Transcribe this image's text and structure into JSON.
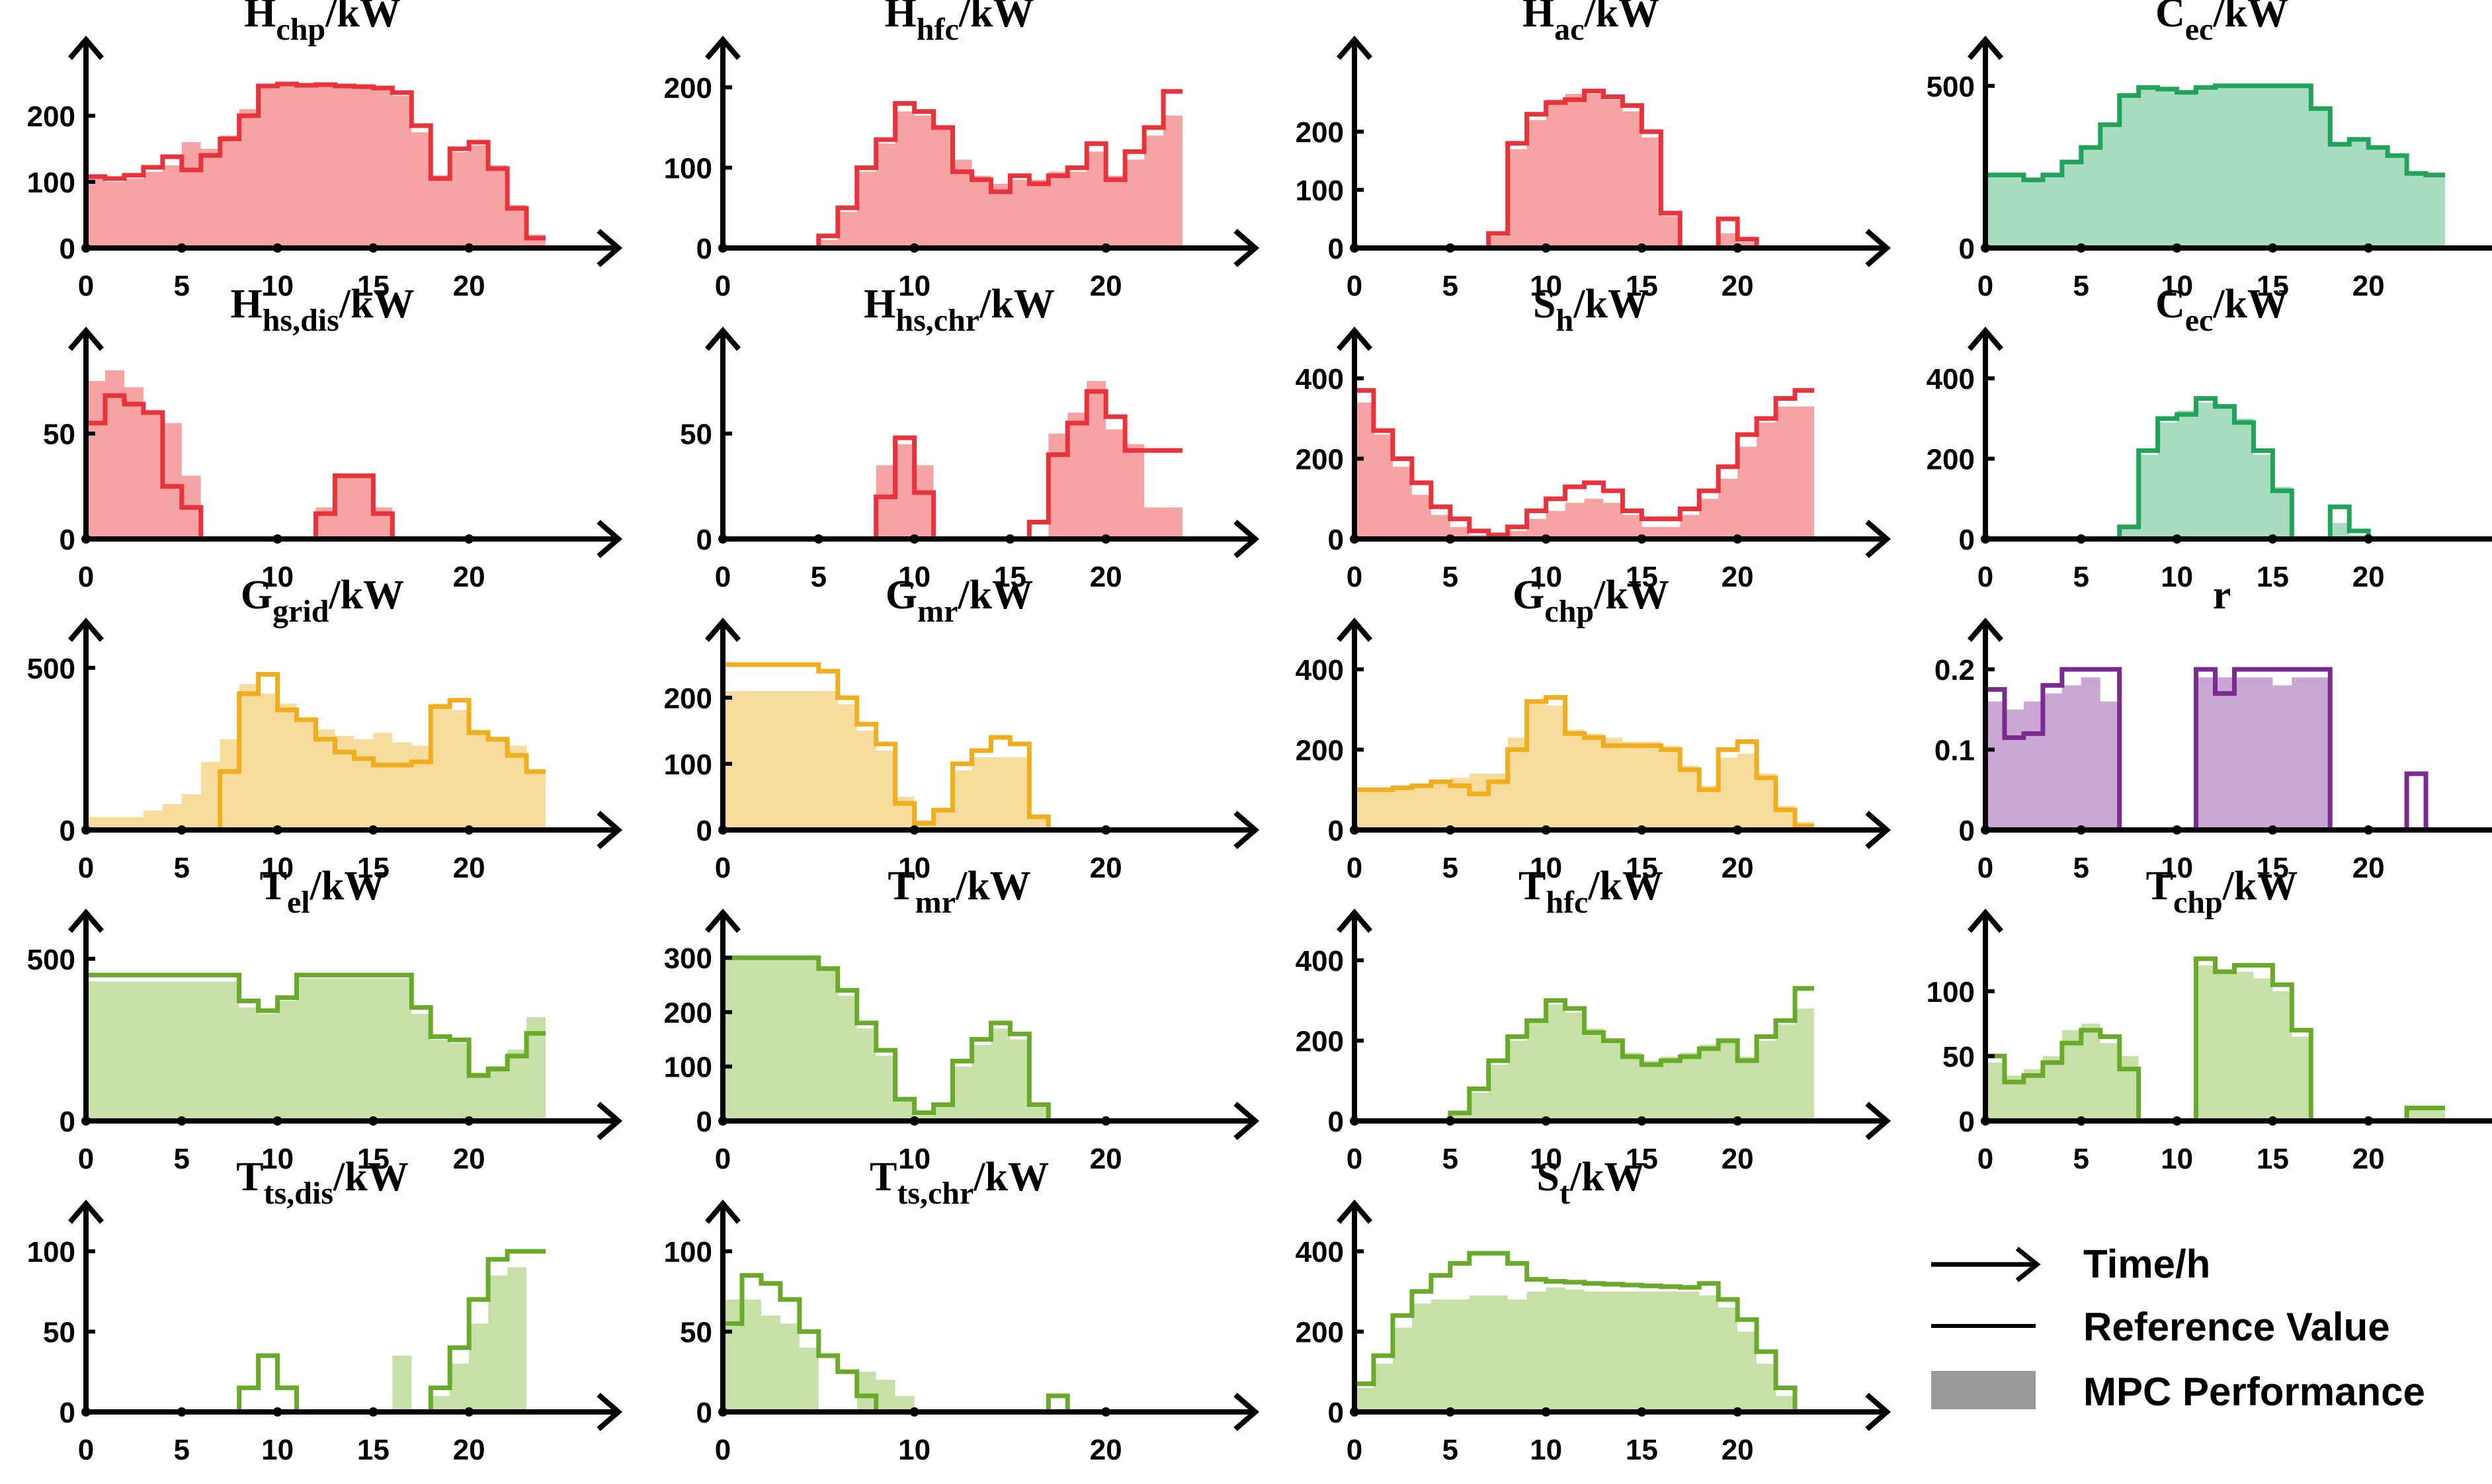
{
  "colors": {
    "red": {
      "line": "#e8333c",
      "fill": "#f5a3a3"
    },
    "green": {
      "line": "#22a35a",
      "fill": "#a8dcc0"
    },
    "yellow": {
      "line": "#f0ad1e",
      "fill": "#f8dc9e"
    },
    "purple": {
      "line": "#7b2a90",
      "fill": "#c9a6d3"
    },
    "olive": {
      "line": "#6aaa2a",
      "fill": "#c7e0a8"
    },
    "axis": "#000000",
    "legend_patch": "#999999"
  },
  "legend": {
    "time_label": "Time/h",
    "ref_label": "Reference Value",
    "mpc_label": "MPC Performance"
  },
  "chart_data": [
    {
      "id": "H_chp",
      "type": "step-area",
      "title_main": "H",
      "title_sub": "chp",
      "title_unit": "/kW",
      "color": "red",
      "xticks": [
        0,
        5,
        10,
        15,
        20
      ],
      "yticks": [
        0,
        100,
        200
      ],
      "ymax": 255,
      "reference": [
        108,
        105,
        110,
        122,
        138,
        118,
        140,
        165,
        200,
        245,
        248,
        246,
        247,
        245,
        244,
        242,
        235,
        185,
        105,
        150,
        160,
        120,
        60,
        15
      ],
      "mpc": [
        110,
        100,
        105,
        115,
        125,
        160,
        150,
        170,
        210,
        245,
        248,
        245,
        245,
        244,
        245,
        240,
        230,
        175,
        110,
        145,
        155,
        125,
        65,
        20
      ]
    },
    {
      "id": "H_hfc",
      "type": "step-area",
      "title_main": "H",
      "title_sub": "hfc",
      "title_unit": "/kW",
      "color": "red",
      "xticks": [
        0,
        10,
        20
      ],
      "yticks": [
        0,
        100,
        200
      ],
      "ymax": 210,
      "reference": [
        0,
        0,
        0,
        0,
        0,
        15,
        50,
        100,
        135,
        180,
        170,
        150,
        95,
        85,
        70,
        90,
        80,
        90,
        100,
        130,
        85,
        120,
        150,
        195
      ],
      "mpc": [
        0,
        0,
        0,
        0,
        0,
        10,
        45,
        95,
        130,
        170,
        165,
        150,
        110,
        90,
        80,
        85,
        85,
        95,
        95,
        120,
        90,
        110,
        140,
        165
      ]
    },
    {
      "id": "H_ac",
      "type": "step-area",
      "title_main": "H",
      "title_sub": "ac",
      "title_unit": "/kW",
      "color": "red",
      "xticks": [
        0,
        5,
        10,
        15,
        20
      ],
      "yticks": [
        0,
        100,
        200
      ],
      "ymax": 290,
      "reference": [
        0,
        0,
        0,
        0,
        0,
        0,
        0,
        25,
        180,
        230,
        250,
        255,
        270,
        260,
        245,
        200,
        60,
        0,
        0,
        50,
        15,
        0,
        0,
        0
      ],
      "mpc": [
        0,
        0,
        0,
        0,
        0,
        0,
        0,
        20,
        170,
        220,
        255,
        265,
        265,
        255,
        235,
        190,
        55,
        0,
        0,
        25,
        10,
        0,
        0,
        0
      ]
    },
    {
      "id": "C_ec",
      "type": "step-area",
      "title_main": "C",
      "title_sub": "ec",
      "title_unit": "/kW",
      "color": "green",
      "xticks": [
        0,
        5,
        10,
        15,
        20
      ],
      "yticks": [
        0,
        500
      ],
      "ymax": 520,
      "reference": [
        225,
        225,
        210,
        225,
        265,
        310,
        380,
        470,
        495,
        490,
        480,
        495,
        500,
        500,
        500,
        500,
        500,
        430,
        320,
        335,
        310,
        285,
        230,
        225
      ],
      "mpc": [
        225,
        225,
        210,
        230,
        270,
        315,
        385,
        470,
        490,
        490,
        485,
        495,
        500,
        500,
        500,
        500,
        500,
        430,
        325,
        330,
        310,
        280,
        230,
        220
      ]
    },
    {
      "id": "H_hs_dis",
      "type": "step-area",
      "title_main": "H",
      "title_sub": "hs,dis",
      "title_unit": "/kW",
      "color": "red",
      "xticks": [
        0,
        10,
        20
      ],
      "yticks": [
        0,
        50
      ],
      "ymax": 80,
      "reference": [
        55,
        68,
        64,
        60,
        25,
        15,
        0,
        0,
        0,
        0,
        0,
        0,
        12,
        30,
        30,
        12,
        0,
        0,
        0,
        0,
        0,
        0,
        0,
        0
      ],
      "mpc": [
        75,
        80,
        72,
        60,
        55,
        30,
        0,
        0,
        0,
        0,
        0,
        0,
        15,
        30,
        30,
        15,
        0,
        0,
        0,
        0,
        0,
        0,
        0,
        0
      ]
    },
    {
      "id": "H_hs_chr",
      "type": "step-area",
      "title_main": "H",
      "title_sub": "hs,chr",
      "title_unit": "/kW",
      "color": "red",
      "xticks": [
        0,
        5,
        10,
        15,
        20
      ],
      "yticks": [
        0,
        50
      ],
      "ymax": 80,
      "reference": [
        0,
        0,
        0,
        0,
        0,
        0,
        0,
        0,
        20,
        48,
        22,
        0,
        0,
        0,
        0,
        0,
        8,
        40,
        55,
        70,
        58,
        42,
        42,
        42
      ],
      "mpc": [
        0,
        0,
        0,
        0,
        0,
        0,
        0,
        0,
        35,
        45,
        35,
        0,
        0,
        0,
        0,
        0,
        0,
        50,
        60,
        75,
        52,
        45,
        15,
        15
      ]
    },
    {
      "id": "S_h",
      "type": "step-area",
      "title_main": "S",
      "title_sub": "h",
      "title_unit": "/kW",
      "color": "red",
      "xticks": [
        0,
        5,
        10,
        15,
        20
      ],
      "yticks": [
        0,
        200,
        400
      ],
      "ymax": 420,
      "reference": [
        370,
        270,
        200,
        140,
        80,
        50,
        20,
        10,
        30,
        70,
        100,
        130,
        140,
        120,
        70,
        50,
        50,
        75,
        120,
        180,
        260,
        300,
        350,
        370
      ],
      "mpc": [
        340,
        260,
        180,
        110,
        60,
        30,
        10,
        10,
        20,
        50,
        70,
        90,
        100,
        90,
        60,
        30,
        30,
        60,
        100,
        150,
        230,
        290,
        330,
        330
      ]
    },
    {
      "id": "C_ec2",
      "type": "step-area",
      "title_main": "C",
      "title_sub": "ec",
      "title_unit": "/kW",
      "color": "green",
      "xticks": [
        0,
        5,
        10,
        15,
        20
      ],
      "yticks": [
        0,
        200,
        400
      ],
      "ymax": 420,
      "reference": [
        0,
        0,
        0,
        0,
        0,
        0,
        0,
        30,
        220,
        300,
        310,
        350,
        330,
        290,
        220,
        120,
        0,
        0,
        80,
        20,
        0,
        0,
        0,
        0
      ],
      "mpc": [
        0,
        0,
        0,
        0,
        0,
        0,
        0,
        30,
        210,
        290,
        320,
        340,
        325,
        300,
        210,
        130,
        0,
        0,
        40,
        10,
        0,
        0,
        0,
        0
      ]
    },
    {
      "id": "G_grid",
      "type": "step-area",
      "title_main": "G",
      "title_sub": "grid",
      "title_unit": "/kW",
      "color": "yellow",
      "xticks": [
        0,
        5,
        10,
        15,
        20
      ],
      "yticks": [
        0,
        500
      ],
      "ymax": 520,
      "reference": [
        0,
        0,
        0,
        0,
        0,
        0,
        0,
        180,
        420,
        480,
        370,
        340,
        280,
        240,
        220,
        200,
        200,
        210,
        380,
        400,
        300,
        280,
        230,
        180
      ],
      "mpc": [
        40,
        40,
        40,
        60,
        80,
        110,
        210,
        280,
        450,
        420,
        390,
        340,
        310,
        290,
        280,
        300,
        270,
        260,
        390,
        370,
        310,
        280,
        260,
        180
      ]
    },
    {
      "id": "G_mr",
      "type": "step-area",
      "title_main": "G",
      "title_sub": "mr",
      "title_unit": "/kW",
      "color": "yellow",
      "xticks": [
        0,
        10,
        20
      ],
      "yticks": [
        0,
        100,
        200
      ],
      "ymax": 255,
      "reference": [
        250,
        250,
        250,
        250,
        250,
        240,
        200,
        160,
        130,
        40,
        10,
        30,
        100,
        120,
        140,
        130,
        20,
        0,
        0,
        0,
        0,
        0,
        0,
        0
      ],
      "mpc": [
        210,
        210,
        210,
        210,
        210,
        210,
        190,
        150,
        120,
        50,
        15,
        30,
        90,
        110,
        110,
        110,
        20,
        0,
        0,
        0,
        0,
        0,
        0,
        0
      ]
    },
    {
      "id": "G_chp",
      "type": "step-area",
      "title_main": "G",
      "title_sub": "chp",
      "title_unit": "/kW",
      "color": "yellow",
      "xticks": [
        0,
        5,
        10,
        15,
        20
      ],
      "yticks": [
        0,
        200,
        400
      ],
      "ymax": 420,
      "reference": [
        100,
        100,
        105,
        110,
        120,
        110,
        90,
        120,
        200,
        320,
        330,
        240,
        230,
        210,
        210,
        210,
        200,
        150,
        100,
        200,
        220,
        130,
        50,
        10
      ],
      "mpc": [
        95,
        100,
        110,
        110,
        115,
        130,
        140,
        140,
        230,
        320,
        310,
        250,
        240,
        230,
        220,
        220,
        210,
        160,
        110,
        180,
        190,
        140,
        60,
        20
      ]
    },
    {
      "id": "r",
      "type": "step-area",
      "title_main": "r",
      "title_sub": "",
      "title_unit": "",
      "color": "purple",
      "xticks": [
        0,
        5,
        10,
        15,
        20
      ],
      "yticks": [
        0,
        0.1,
        0.2
      ],
      "ymax": 0.21,
      "reference": [
        0.175,
        0.115,
        0.12,
        0.18,
        0.2,
        0.2,
        0.2,
        0,
        0,
        0,
        0,
        0.2,
        0.17,
        0.2,
        0.2,
        0.2,
        0.2,
        0.2,
        0,
        0,
        0,
        0,
        0.07,
        0
      ],
      "mpc": [
        0.16,
        0.15,
        0.16,
        0.17,
        0.18,
        0.19,
        0.16,
        0,
        0,
        0,
        0,
        0.19,
        0.19,
        0.19,
        0.19,
        0.18,
        0.19,
        0.19,
        0,
        0,
        0,
        0,
        0,
        0
      ]
    },
    {
      "id": "T_el",
      "type": "step-area",
      "title_main": "T",
      "title_sub": "el",
      "title_unit": "/kW",
      "color": "olive",
      "xticks": [
        0,
        5,
        10,
        15,
        20
      ],
      "yticks": [
        0,
        500
      ],
      "ymax": 520,
      "reference": [
        450,
        450,
        450,
        450,
        450,
        450,
        450,
        450,
        370,
        340,
        380,
        450,
        450,
        450,
        450,
        450,
        450,
        350,
        260,
        250,
        140,
        160,
        200,
        270
      ],
      "mpc": [
        430,
        430,
        430,
        430,
        430,
        430,
        430,
        430,
        350,
        330,
        370,
        440,
        440,
        440,
        440,
        440,
        440,
        330,
        250,
        240,
        150,
        170,
        220,
        320
      ]
    },
    {
      "id": "T_mr",
      "type": "step-area",
      "title_main": "T",
      "title_sub": "mr",
      "title_unit": "/kW",
      "color": "olive",
      "xticks": [
        0,
        10,
        20
      ],
      "yticks": [
        0,
        100,
        200,
        300
      ],
      "ymax": 310,
      "reference": [
        300,
        300,
        300,
        300,
        300,
        280,
        240,
        180,
        130,
        40,
        15,
        30,
        110,
        150,
        180,
        160,
        30,
        0,
        0,
        0,
        0,
        0,
        0,
        0
      ],
      "mpc": [
        300,
        300,
        300,
        300,
        300,
        280,
        230,
        170,
        120,
        40,
        10,
        30,
        100,
        140,
        170,
        150,
        25,
        0,
        0,
        0,
        0,
        0,
        0,
        0
      ]
    },
    {
      "id": "T_hfc",
      "type": "step-area",
      "title_main": "T",
      "title_sub": "hfc",
      "title_unit": "/kW",
      "color": "olive",
      "xticks": [
        0,
        5,
        10,
        15,
        20
      ],
      "yticks": [
        0,
        200,
        400
      ],
      "ymax": 420,
      "reference": [
        0,
        0,
        0,
        0,
        0,
        20,
        80,
        150,
        210,
        250,
        300,
        280,
        220,
        200,
        160,
        140,
        150,
        160,
        180,
        200,
        150,
        210,
        250,
        330
      ],
      "mpc": [
        0,
        0,
        0,
        0,
        0,
        15,
        70,
        140,
        200,
        250,
        290,
        270,
        230,
        200,
        170,
        150,
        160,
        170,
        190,
        200,
        160,
        200,
        240,
        280
      ]
    },
    {
      "id": "T_chp",
      "type": "step-area",
      "title_main": "T",
      "title_sub": "chp",
      "title_unit": "/kW",
      "color": "olive",
      "xticks": [
        0,
        5,
        10,
        15,
        20
      ],
      "yticks": [
        0,
        50,
        100
      ],
      "ymax": 130,
      "reference": [
        50,
        30,
        35,
        45,
        60,
        70,
        65,
        40,
        0,
        0,
        0,
        125,
        115,
        120,
        120,
        105,
        70,
        0,
        0,
        0,
        0,
        0,
        10,
        10
      ],
      "mpc": [
        45,
        35,
        40,
        50,
        70,
        75,
        60,
        50,
        0,
        0,
        0,
        120,
        115,
        115,
        110,
        100,
        65,
        0,
        0,
        0,
        0,
        0,
        10,
        10
      ]
    },
    {
      "id": "T_ts_dis",
      "type": "step-area",
      "title_main": "T",
      "title_sub": "ts,dis",
      "title_unit": "/kW",
      "color": "olive",
      "xticks": [
        0,
        5,
        10,
        15,
        20
      ],
      "yticks": [
        0,
        50,
        100
      ],
      "ymax": 105,
      "reference": [
        0,
        0,
        0,
        0,
        0,
        0,
        0,
        0,
        15,
        35,
        15,
        0,
        0,
        0,
        0,
        0,
        0,
        0,
        15,
        40,
        70,
        95,
        100,
        100
      ],
      "mpc": [
        0,
        0,
        0,
        0,
        0,
        0,
        0,
        0,
        0,
        0,
        0,
        0,
        0,
        0,
        0,
        0,
        35,
        0,
        10,
        30,
        55,
        85,
        90,
        0
      ]
    },
    {
      "id": "T_ts_chr",
      "type": "step-area",
      "title_main": "T",
      "title_sub": "ts,chr",
      "title_unit": "/kW",
      "color": "olive",
      "xticks": [
        0,
        10,
        20
      ],
      "yticks": [
        0,
        50,
        100
      ],
      "ymax": 105,
      "reference": [
        55,
        85,
        80,
        70,
        50,
        35,
        25,
        10,
        0,
        0,
        0,
        0,
        0,
        0,
        0,
        0,
        0,
        10,
        0,
        0,
        0,
        0,
        0,
        0
      ],
      "mpc": [
        70,
        70,
        60,
        55,
        40,
        0,
        0,
        25,
        20,
        10,
        0,
        0,
        0,
        0,
        0,
        0,
        0,
        0,
        0,
        0,
        0,
        0,
        0,
        0
      ]
    },
    {
      "id": "S_t",
      "type": "step-area",
      "title_main": "S",
      "title_sub": "t",
      "title_unit": "/kW",
      "color": "olive",
      "xticks": [
        0,
        5,
        10,
        15,
        20
      ],
      "yticks": [
        0,
        200,
        400
      ],
      "ymax": 420,
      "reference": [
        70,
        140,
        240,
        300,
        340,
        370,
        395,
        395,
        370,
        330,
        325,
        323,
        320,
        318,
        316,
        314,
        312,
        310,
        320,
        280,
        230,
        150,
        60,
        0
      ],
      "mpc": [
        60,
        120,
        210,
        270,
        280,
        280,
        290,
        290,
        280,
        300,
        310,
        305,
        300,
        300,
        300,
        300,
        300,
        300,
        290,
        260,
        200,
        120,
        40,
        0
      ]
    }
  ]
}
